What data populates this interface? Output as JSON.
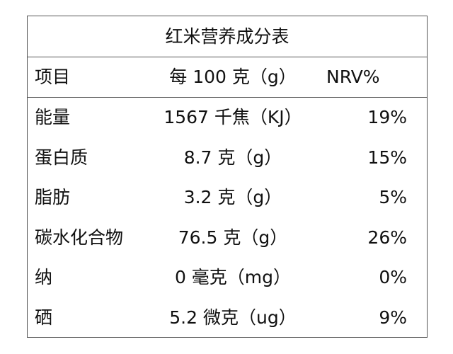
{
  "table": {
    "title": "红米营养成分表",
    "header": [
      "项目",
      "每 100 克（g）",
      "NRV%"
    ],
    "rows": [
      [
        "能量",
        "1567 千焦（KJ）",
        "19%"
      ],
      [
        "蛋白质",
        "8.7 克（g）",
        "15%"
      ],
      [
        "脂肪",
        "3.2 克（g）",
        "5%"
      ],
      [
        "碳水化合物",
        "76.5 克（g）",
        "26%"
      ],
      [
        "纳",
        "0 毫克（mg）",
        "0%"
      ],
      [
        "硒",
        "5.2 微克（ug）",
        "9%"
      ]
    ]
  }
}
